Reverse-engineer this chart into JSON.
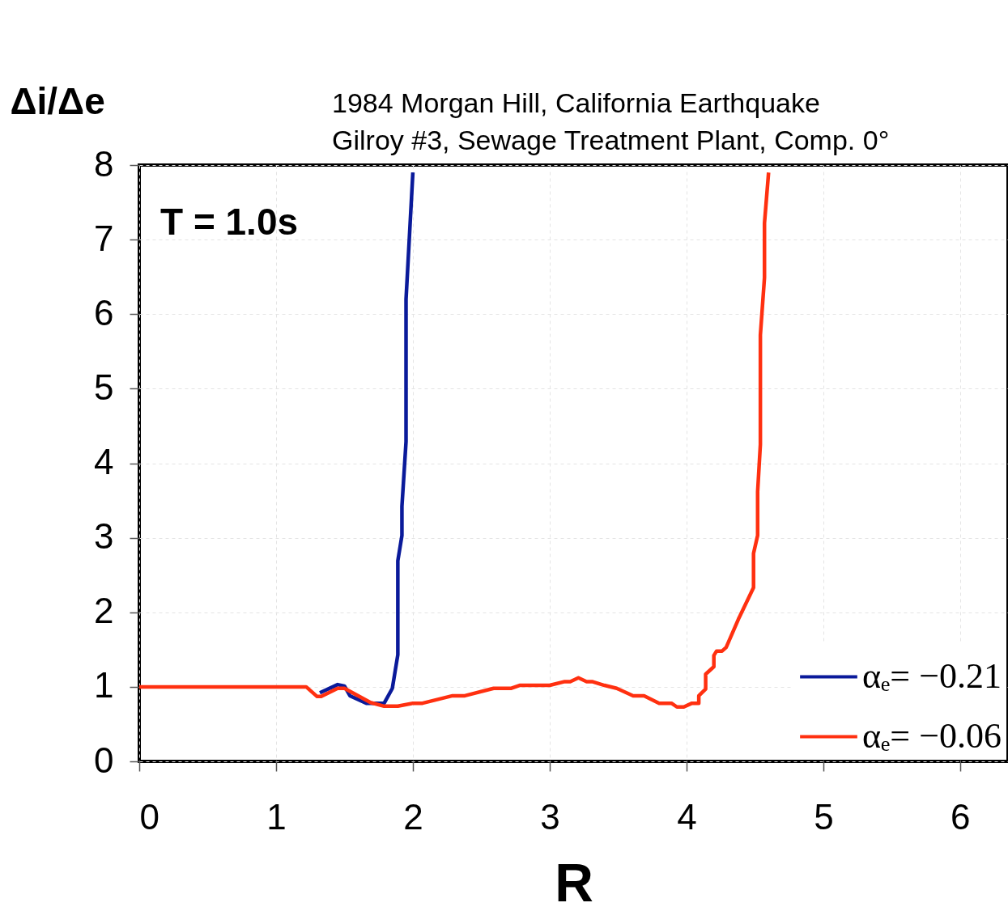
{
  "chart_data": {
    "type": "line",
    "title": "1984 Morgan Hill, California Earthquake",
    "subtitle": "Gilroy #3, Sewage Treatment Plant, Comp. 0°",
    "xlabel": "R",
    "ylabel": "Δi/Δe",
    "annotations": [
      "T = 1.0s"
    ],
    "xlim": [
      0,
      6.35
    ],
    "ylim": [
      0,
      8
    ],
    "xticks": [
      0,
      1,
      2,
      3,
      4,
      5,
      6
    ],
    "yticks": [
      0,
      1,
      2,
      3,
      4,
      5,
      6,
      7,
      8
    ],
    "grid": true,
    "legend": "bottom right",
    "marker": "none",
    "line_style": "solid",
    "series": [
      {
        "name": "αₑ= −0.21",
        "color": "#0a1a9a",
        "x": [
          1.32,
          1.45,
          1.5,
          1.54,
          1.66,
          1.79,
          1.85,
          1.89,
          1.89,
          1.92,
          1.92,
          1.95,
          1.95,
          2.0
        ],
        "values": [
          0.92,
          1.03,
          1.01,
          0.88,
          0.78,
          0.78,
          0.98,
          1.43,
          2.69,
          3.03,
          3.42,
          4.29,
          6.2,
          7.9
        ]
      },
      {
        "name": "αₑ= −0.06",
        "color": "#ff3010",
        "x": [
          0,
          1.22,
          1.3,
          1.33,
          1.45,
          1.5,
          1.69,
          1.79,
          1.89,
          2.0,
          2.07,
          2.29,
          2.38,
          2.59,
          2.72,
          2.78,
          3.0,
          3.11,
          3.15,
          3.21,
          3.27,
          3.31,
          3.4,
          3.49,
          3.61,
          3.69,
          3.8,
          3.89,
          3.93,
          3.98,
          4.04,
          4.09,
          4.09,
          4.14,
          4.14,
          4.2,
          4.2,
          4.22,
          4.26,
          4.29,
          4.38,
          4.49,
          4.49,
          4.52,
          4.52,
          4.54,
          4.54,
          4.57,
          4.57,
          4.6
        ],
        "values": [
          1.0,
          1.0,
          0.87,
          0.87,
          0.98,
          0.98,
          0.79,
          0.74,
          0.74,
          0.78,
          0.78,
          0.88,
          0.88,
          0.98,
          0.98,
          1.02,
          1.02,
          1.07,
          1.07,
          1.12,
          1.07,
          1.07,
          1.02,
          0.98,
          0.88,
          0.88,
          0.78,
          0.78,
          0.73,
          0.73,
          0.78,
          0.78,
          0.88,
          0.97,
          1.17,
          1.27,
          1.42,
          1.48,
          1.48,
          1.53,
          1.91,
          2.33,
          2.79,
          3.03,
          3.62,
          4.25,
          5.72,
          6.49,
          7.22,
          7.9
        ]
      }
    ]
  }
}
